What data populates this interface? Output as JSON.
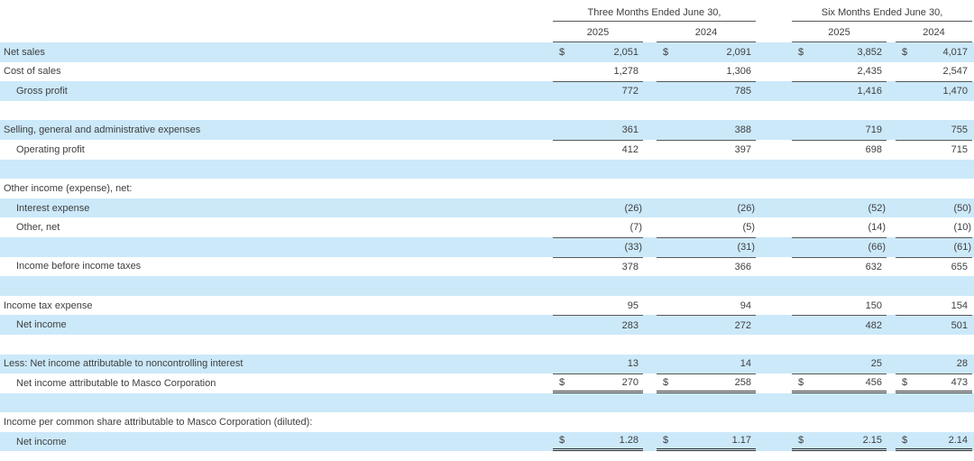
{
  "document": {
    "type": "condensed-consolidated-statement-of-operations",
    "company": "Masco Corporation"
  },
  "colors": {
    "row_highlight": "#cce9f9",
    "rule": "#57585a",
    "double_rule": "#2e2e30",
    "text": "#3e3e40",
    "background": "#ffffff"
  },
  "table": {
    "currency_symbol": "$",
    "col_groups": [
      {
        "label": "Three Months Ended June 30,",
        "years": [
          "2025",
          "2024"
        ]
      },
      {
        "label": "Six Months Ended June 30,",
        "years": [
          "2025",
          "2024"
        ]
      }
    ],
    "rows": [
      {
        "label": "Net sales",
        "indent": 0,
        "bg": "blue",
        "dollar": true,
        "values": [
          "2,051",
          "2,091",
          "3,852",
          "4,017"
        ]
      },
      {
        "label": "Cost of sales",
        "indent": 0,
        "bg": "white",
        "values": [
          "1,278",
          "1,306",
          "2,435",
          "2,547"
        ]
      },
      {
        "label": "Gross profit",
        "indent": 1,
        "bg": "blue",
        "rule_top": true,
        "values": [
          "772",
          "785",
          "1,416",
          "1,470"
        ]
      },
      {
        "label": "",
        "bg": "white",
        "values": []
      },
      {
        "label": "Selling, general and administrative expenses",
        "indent": 0,
        "bg": "blue",
        "values": [
          "361",
          "388",
          "719",
          "755"
        ]
      },
      {
        "label": "Operating profit",
        "indent": 1,
        "bg": "white",
        "rule_top": true,
        "values": [
          "412",
          "397",
          "698",
          "715"
        ]
      },
      {
        "label": "",
        "bg": "blue",
        "values": []
      },
      {
        "label": "Other income (expense), net:",
        "indent": 0,
        "bg": "white",
        "values": []
      },
      {
        "label": "Interest expense",
        "indent": 1,
        "bg": "blue",
        "values": [
          "(26)",
          "(26)",
          "(52)",
          "(50)"
        ]
      },
      {
        "label": "Other, net",
        "indent": 1,
        "bg": "white",
        "values": [
          "(7)",
          "(5)",
          "(14)",
          "(10)"
        ]
      },
      {
        "label": "",
        "bg": "blue",
        "rule_top": true,
        "values": [
          "(33)",
          "(31)",
          "(66)",
          "(61)"
        ]
      },
      {
        "label": "Income before income taxes",
        "indent": 1,
        "bg": "white",
        "rule_top": true,
        "values": [
          "378",
          "366",
          "632",
          "655"
        ]
      },
      {
        "label": "",
        "bg": "blue",
        "values": []
      },
      {
        "label": "Income tax expense",
        "indent": 0,
        "bg": "white",
        "values": [
          "95",
          "94",
          "150",
          "154"
        ]
      },
      {
        "label": "Net income",
        "indent": 1,
        "bg": "blue",
        "rule_top": true,
        "values": [
          "283",
          "272",
          "482",
          "501"
        ]
      },
      {
        "label": "",
        "bg": "white",
        "values": []
      },
      {
        "label": "Less: Net income attributable to noncontrolling interest",
        "indent": 0,
        "bg": "blue",
        "values": [
          "13",
          "14",
          "25",
          "28"
        ]
      },
      {
        "label": "Net income attributable to Masco Corporation",
        "indent": 1,
        "bg": "white",
        "dollar": true,
        "rule_top": true,
        "rule_bottom_double": true,
        "values": [
          "270",
          "258",
          "456",
          "473"
        ]
      },
      {
        "label": "",
        "bg": "blue",
        "values": []
      },
      {
        "label": "Income per common share attributable to Masco Corporation (diluted):",
        "indent": 0,
        "bg": "white",
        "values": []
      },
      {
        "label": "Net income",
        "indent": 1,
        "bg": "blue",
        "dollar": true,
        "rule_bottom_double": true,
        "values": [
          "1.28",
          "1.17",
          "2.15",
          "2.14"
        ]
      }
    ]
  }
}
